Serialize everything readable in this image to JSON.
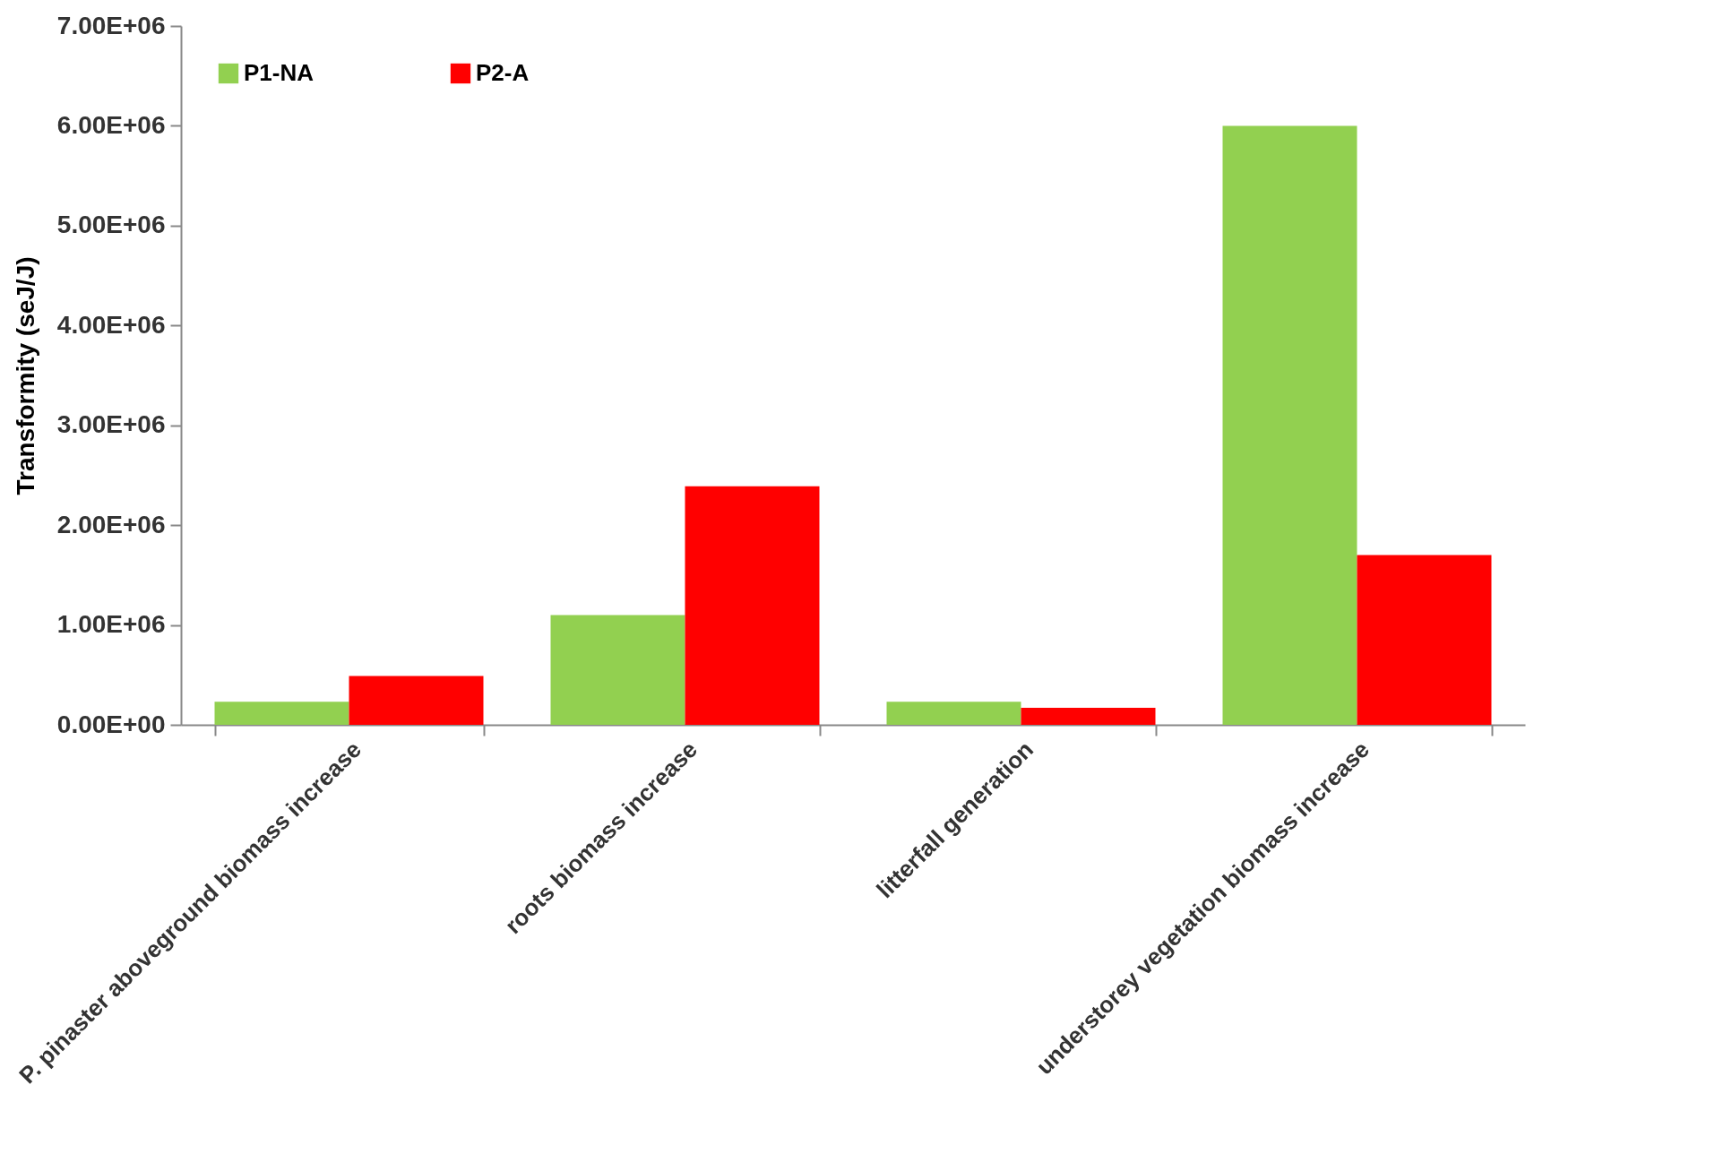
{
  "chart_data": {
    "type": "bar",
    "ylabel": "Transformity (seJ/J)",
    "categories": [
      "P. pinaster aboveground biomass increase",
      "roots biomass increase",
      "litterfall generation",
      "understorey vegetation biomass increase"
    ],
    "series": [
      {
        "name": "P1-NA",
        "color": "#92d050",
        "values": [
          230000,
          1100000,
          230000,
          6000000
        ]
      },
      {
        "name": "P2-A",
        "color": "#ff0000",
        "values": [
          490000,
          2390000,
          170000,
          1700000
        ]
      }
    ],
    "ylim": [
      0,
      7000000
    ],
    "yticks": [
      {
        "value": 0,
        "label": "0.00E+00"
      },
      {
        "value": 1000000,
        "label": "1.00E+06"
      },
      {
        "value": 2000000,
        "label": "2.00E+06"
      },
      {
        "value": 3000000,
        "label": "3.00E+06"
      },
      {
        "value": 4000000,
        "label": "4.00E+06"
      },
      {
        "value": 5000000,
        "label": "5.00E+06"
      },
      {
        "value": 6000000,
        "label": "6.00E+06"
      },
      {
        "value": 7000000,
        "label": "7.00E+06"
      }
    ],
    "grid": false,
    "legend": "top left"
  }
}
